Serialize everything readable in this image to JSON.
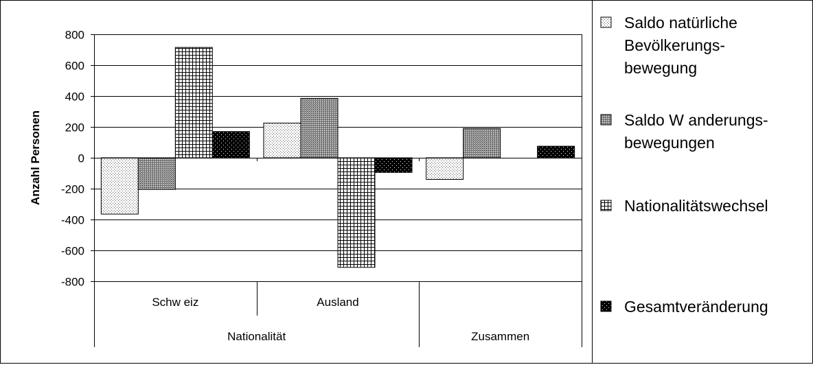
{
  "chart_data": {
    "type": "bar",
    "ylabel": "Anzahl Personen",
    "ylim": [
      -800,
      800
    ],
    "yticks": [
      800,
      600,
      400,
      200,
      0,
      -200,
      -400,
      -600,
      -800
    ],
    "grid": true,
    "legend_position": "right",
    "categories": [
      "Schw eiz",
      "Ausland",
      ""
    ],
    "category_groups": [
      {
        "label": "Nationalität",
        "span": 2
      },
      {
        "label": "Zusammen",
        "span": 1
      }
    ],
    "series": [
      {
        "name": "Saldo natürliche Bevölkerungs-bewegung",
        "legend_lines": [
          "Saldo natürliche",
          "Bevölkerungs-",
          "bewegung"
        ],
        "pattern": "dots-light",
        "values": [
          -365,
          225,
          -140
        ]
      },
      {
        "name": "Saldo W anderungs-bewegungen",
        "legend_lines": [
          "Saldo W anderungs-",
          "bewegungen"
        ],
        "pattern": "crosshatch-gray",
        "values": [
          -205,
          385,
          190
        ]
      },
      {
        "name": "Nationalitätswechsel",
        "legend_lines": [
          "Nationalitätswechsel"
        ],
        "pattern": "grid",
        "values": [
          715,
          -710,
          0
        ]
      },
      {
        "name": "Gesamtveränderung",
        "legend_lines": [
          "Gesamtveränderung"
        ],
        "pattern": "dots-dark",
        "values": [
          170,
          -95,
          75
        ]
      }
    ]
  }
}
